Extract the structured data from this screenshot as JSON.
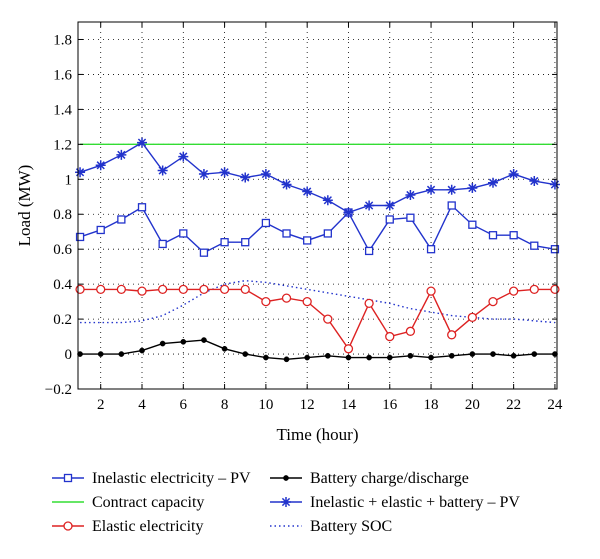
{
  "chart_data": {
    "type": "line",
    "xlabel": "Time (hour)",
    "ylabel": "Load (MW)",
    "xlim": [
      0.9,
      24.1
    ],
    "ylim": [
      -0.2,
      1.9
    ],
    "xticks": [
      2,
      4,
      6,
      8,
      10,
      12,
      14,
      16,
      18,
      20,
      22,
      24
    ],
    "xtick_labels": [
      "2",
      "4",
      "6",
      "8",
      "10",
      "12",
      "14",
      "16",
      "18",
      "20",
      "22",
      "24"
    ],
    "yticks": [
      -0.2,
      0,
      0.2,
      0.4,
      0.6,
      0.8,
      1.0,
      1.2,
      1.4,
      1.6,
      1.8
    ],
    "ytick_labels": [
      "−0.2",
      "0",
      "0.2",
      "0.4",
      "0.6",
      "0.8",
      "1",
      "1.2",
      "1.4",
      "1.6",
      "1.8"
    ],
    "grid": true,
    "legend_position": "bottom",
    "x": [
      1,
      2,
      3,
      4,
      5,
      6,
      7,
      8,
      9,
      10,
      11,
      12,
      13,
      14,
      15,
      16,
      17,
      18,
      19,
      20,
      21,
      22,
      23,
      24
    ],
    "series": [
      {
        "name": "Inelastic electricity – PV",
        "color": "#2233cc",
        "marker": "square",
        "line": "solid",
        "values": [
          0.67,
          0.71,
          0.77,
          0.84,
          0.63,
          0.69,
          0.58,
          0.64,
          0.64,
          0.75,
          0.69,
          0.65,
          0.69,
          0.81,
          0.59,
          0.77,
          0.78,
          0.6,
          0.85,
          0.74,
          0.68,
          0.68,
          0.62,
          0.6
        ]
      },
      {
        "name": "Contract capacity",
        "color": "#33dd33",
        "marker": "none",
        "line": "solid",
        "values": [
          1.2,
          1.2,
          1.2,
          1.2,
          1.2,
          1.2,
          1.2,
          1.2,
          1.2,
          1.2,
          1.2,
          1.2,
          1.2,
          1.2,
          1.2,
          1.2,
          1.2,
          1.2,
          1.2,
          1.2,
          1.2,
          1.2,
          1.2,
          1.2
        ]
      },
      {
        "name": "Elastic electricity",
        "color": "#dd2222",
        "marker": "circle",
        "line": "solid",
        "values": [
          0.37,
          0.37,
          0.37,
          0.36,
          0.37,
          0.37,
          0.37,
          0.37,
          0.37,
          0.3,
          0.32,
          0.3,
          0.2,
          0.03,
          0.29,
          0.1,
          0.13,
          0.36,
          0.11,
          0.21,
          0.3,
          0.36,
          0.37,
          0.37
        ]
      },
      {
        "name": "Battery charge/discharge",
        "color": "#000000",
        "marker": "dot",
        "line": "solid",
        "values": [
          0.0,
          0.0,
          0.0,
          0.02,
          0.06,
          0.07,
          0.08,
          0.03,
          0.0,
          -0.02,
          -0.03,
          -0.02,
          -0.01,
          -0.02,
          -0.02,
          -0.02,
          -0.01,
          -0.02,
          -0.01,
          0.0,
          0.0,
          -0.01,
          0.0,
          0.0
        ]
      },
      {
        "name": "Inelastic + elastic + battery – PV",
        "color": "#2233cc",
        "marker": "star",
        "line": "solid",
        "values": [
          1.04,
          1.08,
          1.14,
          1.21,
          1.05,
          1.13,
          1.03,
          1.04,
          1.01,
          1.03,
          0.97,
          0.93,
          0.88,
          0.81,
          0.85,
          0.85,
          0.91,
          0.94,
          0.94,
          0.95,
          0.98,
          1.03,
          0.99,
          0.97
        ]
      },
      {
        "name": "Battery SOC",
        "color": "#2233cc",
        "marker": "none",
        "line": "dotted",
        "values": [
          0.18,
          0.18,
          0.18,
          0.19,
          0.22,
          0.28,
          0.35,
          0.4,
          0.42,
          0.41,
          0.39,
          0.37,
          0.35,
          0.33,
          0.31,
          0.29,
          0.26,
          0.24,
          0.22,
          0.21,
          0.2,
          0.2,
          0.19,
          0.18
        ]
      }
    ]
  }
}
